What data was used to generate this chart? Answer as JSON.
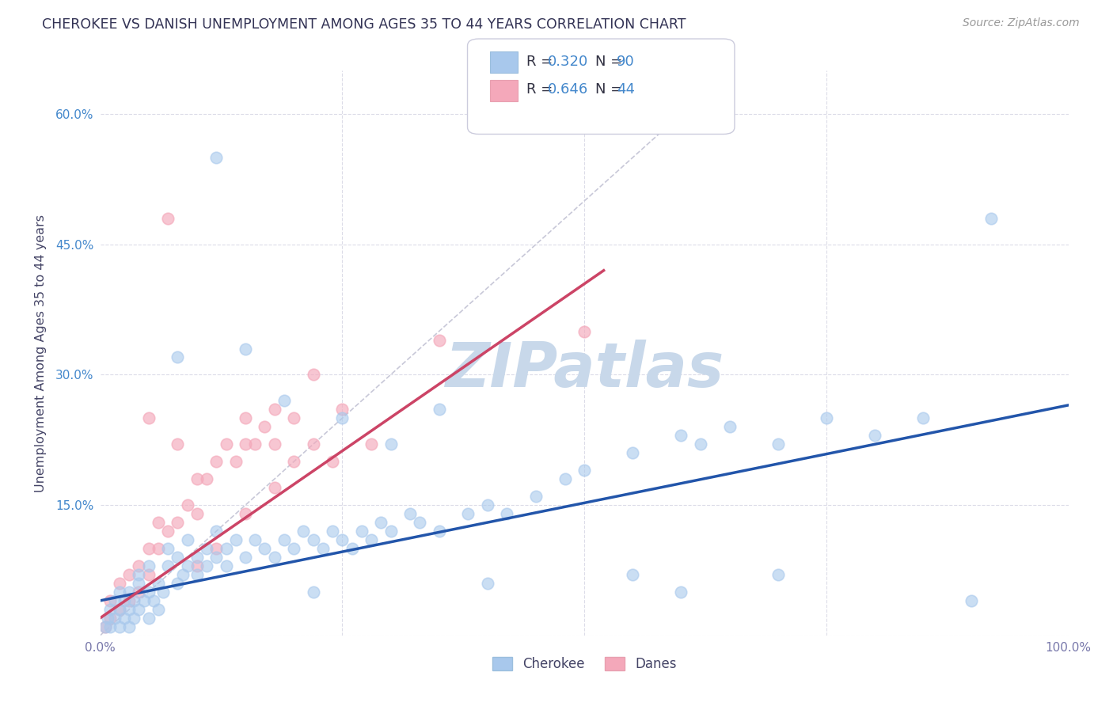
{
  "title": "CHEROKEE VS DANISH UNEMPLOYMENT AMONG AGES 35 TO 44 YEARS CORRELATION CHART",
  "source": "Source: ZipAtlas.com",
  "ylabel": "Unemployment Among Ages 35 to 44 years",
  "xlim": [
    0.0,
    1.0
  ],
  "ylim": [
    0.0,
    0.65
  ],
  "xticks": [
    0.0,
    0.25,
    0.5,
    0.75,
    1.0
  ],
  "xticklabels": [
    "0.0%",
    "",
    "",
    "",
    "100.0%"
  ],
  "yticks": [
    0.0,
    0.15,
    0.3,
    0.45,
    0.6
  ],
  "yticklabels": [
    "",
    "15.0%",
    "30.0%",
    "45.0%",
    "60.0%"
  ],
  "cherokee_R": "0.320",
  "cherokee_N": "90",
  "danes_R": "0.646",
  "danes_N": "44",
  "cherokee_color": "#A8C8EC",
  "danes_color": "#F4A8BA",
  "cherokee_line_color": "#2255AA",
  "danes_line_color": "#CC4466",
  "diagonal_color": "#C8C8D8",
  "watermark": "ZIPatlas",
  "watermark_color": "#C8D8EA",
  "grid_color": "#DCDCE8",
  "accent_color": "#4488CC",
  "cherokee_x": [
    0.005,
    0.008,
    0.01,
    0.01,
    0.015,
    0.015,
    0.02,
    0.02,
    0.02,
    0.025,
    0.025,
    0.03,
    0.03,
    0.03,
    0.035,
    0.035,
    0.04,
    0.04,
    0.04,
    0.045,
    0.05,
    0.05,
    0.05,
    0.055,
    0.06,
    0.06,
    0.065,
    0.07,
    0.07,
    0.08,
    0.08,
    0.085,
    0.09,
    0.09,
    0.1,
    0.1,
    0.11,
    0.11,
    0.12,
    0.12,
    0.13,
    0.13,
    0.14,
    0.15,
    0.16,
    0.17,
    0.18,
    0.19,
    0.2,
    0.21,
    0.22,
    0.23,
    0.24,
    0.25,
    0.26,
    0.27,
    0.28,
    0.29,
    0.3,
    0.32,
    0.33,
    0.35,
    0.38,
    0.4,
    0.42,
    0.45,
    0.48,
    0.5,
    0.55,
    0.6,
    0.62,
    0.65,
    0.7,
    0.75,
    0.8,
    0.85,
    0.9,
    0.92,
    0.19,
    0.25,
    0.35,
    0.15,
    0.22,
    0.3,
    0.4,
    0.55,
    0.6,
    0.7,
    0.08,
    0.12
  ],
  "cherokee_y": [
    0.01,
    0.02,
    0.01,
    0.03,
    0.02,
    0.04,
    0.01,
    0.03,
    0.05,
    0.02,
    0.04,
    0.01,
    0.03,
    0.05,
    0.02,
    0.04,
    0.03,
    0.06,
    0.07,
    0.04,
    0.02,
    0.05,
    0.08,
    0.04,
    0.03,
    0.06,
    0.05,
    0.08,
    0.1,
    0.06,
    0.09,
    0.07,
    0.08,
    0.11,
    0.07,
    0.09,
    0.08,
    0.1,
    0.09,
    0.12,
    0.1,
    0.08,
    0.11,
    0.09,
    0.11,
    0.1,
    0.09,
    0.11,
    0.1,
    0.12,
    0.11,
    0.1,
    0.12,
    0.11,
    0.1,
    0.12,
    0.11,
    0.13,
    0.12,
    0.14,
    0.13,
    0.12,
    0.14,
    0.15,
    0.14,
    0.16,
    0.18,
    0.19,
    0.21,
    0.23,
    0.22,
    0.24,
    0.22,
    0.25,
    0.23,
    0.25,
    0.04,
    0.48,
    0.27,
    0.25,
    0.26,
    0.33,
    0.05,
    0.22,
    0.06,
    0.07,
    0.05,
    0.07,
    0.32,
    0.55
  ],
  "danes_x": [
    0.005,
    0.01,
    0.01,
    0.02,
    0.02,
    0.03,
    0.03,
    0.04,
    0.04,
    0.05,
    0.05,
    0.06,
    0.06,
    0.07,
    0.08,
    0.09,
    0.1,
    0.1,
    0.11,
    0.12,
    0.13,
    0.14,
    0.15,
    0.15,
    0.16,
    0.17,
    0.18,
    0.18,
    0.2,
    0.22,
    0.25,
    0.28,
    0.12,
    0.2,
    0.08,
    0.22,
    0.18,
    0.24,
    0.35,
    0.5,
    0.05,
    0.07,
    0.15,
    0.1
  ],
  "danes_y": [
    0.01,
    0.02,
    0.04,
    0.03,
    0.06,
    0.04,
    0.07,
    0.05,
    0.08,
    0.07,
    0.1,
    0.1,
    0.13,
    0.12,
    0.13,
    0.15,
    0.14,
    0.18,
    0.18,
    0.2,
    0.22,
    0.2,
    0.22,
    0.25,
    0.22,
    0.24,
    0.22,
    0.26,
    0.25,
    0.3,
    0.26,
    0.22,
    0.1,
    0.2,
    0.22,
    0.22,
    0.17,
    0.2,
    0.34,
    0.35,
    0.25,
    0.48,
    0.14,
    0.08
  ],
  "cherokee_line_x0": 0.0,
  "cherokee_line_x1": 1.0,
  "cherokee_line_y0": 0.04,
  "cherokee_line_y1": 0.265,
  "danes_line_x0": 0.0,
  "danes_line_x1": 0.52,
  "danes_line_y0": 0.02,
  "danes_line_y1": 0.42
}
